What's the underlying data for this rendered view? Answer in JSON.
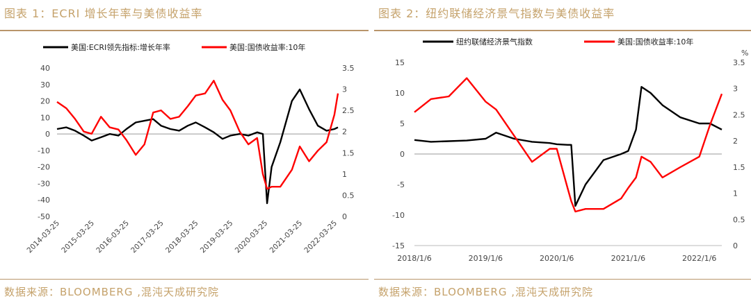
{
  "charts": [
    {
      "panel_title": "图表 1：ECRI 增长年率与美债收益率",
      "source": "数据来源：BLOOMBERG ,混沌天成研究院",
      "chart_data": {
        "type": "line",
        "series": [
          {
            "name": "美国:ECRI领先指标:增长年率",
            "axis": "left",
            "color": "#000000",
            "x": [
              "2014-03-25",
              "2014-07-01",
              "2014-10-01",
              "2015-01-01",
              "2015-03-25",
              "2015-07-01",
              "2015-10-01",
              "2016-01-01",
              "2016-03-25",
              "2016-07-01",
              "2016-10-01",
              "2017-01-01",
              "2017-03-25",
              "2017-07-01",
              "2017-10-01",
              "2018-01-01",
              "2018-03-25",
              "2018-07-01",
              "2018-10-01",
              "2019-01-01",
              "2019-03-25",
              "2019-07-01",
              "2019-10-01",
              "2020-01-01",
              "2020-03-01",
              "2020-04-15",
              "2020-06-01",
              "2020-09-01",
              "2021-01-01",
              "2021-03-25",
              "2021-07-01",
              "2021-10-01",
              "2022-01-01",
              "2022-03-25",
              "2022-05-01"
            ],
            "values": [
              3,
              4,
              2,
              -1,
              -4,
              -2,
              0,
              -1,
              3,
              7,
              8,
              9,
              5,
              3,
              2,
              5,
              7,
              4,
              1,
              -3,
              -1,
              0,
              -1,
              1,
              0,
              -42,
              -20,
              -5,
              20,
              27,
              15,
              5,
              2,
              3,
              4
            ]
          },
          {
            "name": "美国:国债收益率:10年",
            "axis": "right",
            "color": "#ff0000",
            "x": [
              "2014-03-25",
              "2014-07-01",
              "2014-10-01",
              "2015-01-01",
              "2015-03-25",
              "2015-07-01",
              "2015-10-01",
              "2016-01-01",
              "2016-03-25",
              "2016-07-01",
              "2016-10-01",
              "2017-01-01",
              "2017-03-25",
              "2017-07-01",
              "2017-10-01",
              "2018-01-01",
              "2018-03-25",
              "2018-07-01",
              "2018-10-01",
              "2019-01-01",
              "2019-03-25",
              "2019-07-01",
              "2019-10-01",
              "2020-01-01",
              "2020-03-01",
              "2020-04-15",
              "2020-06-01",
              "2020-09-01",
              "2021-01-01",
              "2021-03-25",
              "2021-07-01",
              "2021-10-01",
              "2022-01-01",
              "2022-03-25",
              "2022-05-01"
            ],
            "values": [
              2.7,
              2.55,
              2.3,
              2.0,
              1.95,
              2.35,
              2.1,
              2.05,
              1.8,
              1.45,
              1.7,
              2.45,
              2.5,
              2.3,
              2.35,
              2.6,
              2.85,
              2.9,
              3.2,
              2.75,
              2.5,
              2.0,
              1.7,
              1.85,
              1.0,
              0.65,
              0.7,
              0.7,
              1.1,
              1.65,
              1.3,
              1.55,
              1.75,
              2.4,
              2.9
            ]
          }
        ],
        "x_tick_labels": [
          "2014-03-25",
          "2015-03-25",
          "2016-03-25",
          "2017-03-25",
          "2018-03-25",
          "2019-03-25",
          "2020-03-25",
          "2021-03-25",
          "2022-03-25"
        ],
        "y_left": {
          "ylim": [
            -50,
            40
          ],
          "ticks": [
            "40",
            "30",
            "20",
            "10",
            "0",
            "-10",
            "-20",
            "-30",
            "-40",
            "-50"
          ]
        },
        "y_right": {
          "ylim": [
            0,
            3.5
          ],
          "ticks": [
            "3.5",
            "3",
            "2.5",
            "2",
            "1.5",
            "1",
            "0.5",
            "0"
          ]
        },
        "legend": "top",
        "grid": false
      }
    },
    {
      "panel_title": "图表 2：纽约联储经济景气指数与美债收益率",
      "source": "数据来源：BLOOMBERG ,混沌天成研究院",
      "chart_data": {
        "type": "line",
        "series": [
          {
            "name": "纽约联储经济景气指数",
            "axis": "left",
            "color": "#000000",
            "x": [
              "2018-01-06",
              "2018-04-01",
              "2018-07-01",
              "2018-10-01",
              "2019-01-06",
              "2019-03-01",
              "2019-06-01",
              "2019-09-01",
              "2019-12-01",
              "2020-01-06",
              "2020-03-01",
              "2020-03-20",
              "2020-04-10",
              "2020-06-01",
              "2020-09-01",
              "2020-12-01",
              "2021-01-06",
              "2021-02-15",
              "2021-03-15",
              "2021-05-01",
              "2021-07-01",
              "2021-10-01",
              "2022-01-06",
              "2022-03-01",
              "2022-05-01"
            ],
            "values": [
              2.3,
              2.0,
              2.1,
              2.2,
              2.5,
              3.5,
              2.5,
              2.0,
              1.8,
              1.6,
              1.5,
              1.5,
              -8.5,
              -5,
              -1,
              0,
              0.5,
              4,
              11,
              10,
              8,
              6,
              5,
              5,
              4
            ]
          },
          {
            "name": "美国:国债收益率:10年",
            "axis": "right",
            "color": "#ff0000",
            "x": [
              "2018-01-06",
              "2018-04-01",
              "2018-07-01",
              "2018-10-01",
              "2019-01-06",
              "2019-03-01",
              "2019-06-01",
              "2019-09-01",
              "2019-12-01",
              "2020-01-06",
              "2020-03-01",
              "2020-03-20",
              "2020-04-10",
              "2020-06-01",
              "2020-09-01",
              "2020-12-01",
              "2021-01-06",
              "2021-02-15",
              "2021-03-15",
              "2021-05-01",
              "2021-07-01",
              "2021-10-01",
              "2022-01-06",
              "2022-03-01",
              "2022-05-01"
            ],
            "values": [
              2.55,
              2.8,
              2.85,
              3.2,
              2.75,
              2.6,
              2.1,
              1.6,
              1.85,
              1.85,
              1.1,
              0.85,
              0.65,
              0.7,
              0.7,
              0.9,
              1.1,
              1.3,
              1.7,
              1.6,
              1.3,
              1.5,
              1.7,
              2.3,
              2.9
            ]
          }
        ],
        "x_tick_labels": [
          "2018/1/6",
          "2019/1/6",
          "2020/1/6",
          "2021/1/6",
          "2022/1/6"
        ],
        "y_left": {
          "ylim": [
            -15,
            15
          ],
          "ticks": [
            "15",
            "10",
            "5",
            "0",
            "-5",
            "-10",
            "-15"
          ]
        },
        "y_right": {
          "ylim": [
            0,
            3.5
          ],
          "ticks": [
            "3.5",
            "3",
            "2.5",
            "2",
            "1.5",
            "1",
            "0.5",
            "0"
          ],
          "unit": "%"
        },
        "legend": "top",
        "grid": false
      }
    }
  ]
}
